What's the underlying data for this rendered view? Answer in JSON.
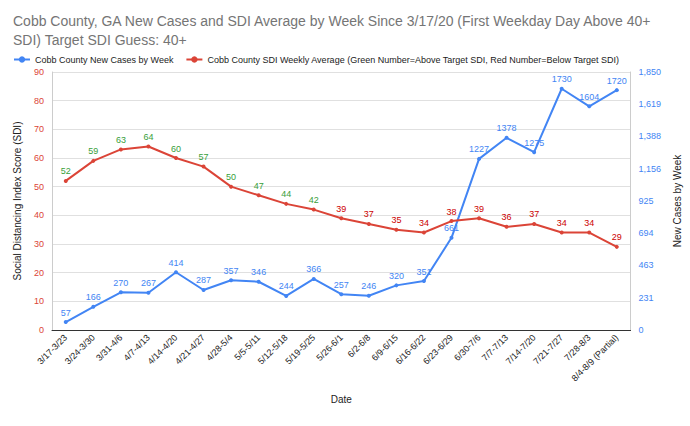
{
  "chart_data": {
    "type": "line",
    "title": "Cobb County, GA New Cases and SDI Average by Week Since 3/17/20 (First Weekday Day Above 40+ SDI) Target SDI Guess: 40+",
    "x_label": "Date",
    "y_label": "Social Distancing Index Score (SDI)",
    "y2_label": "New Cases by Week",
    "categories": [
      "3/17-3/23",
      "3/24-3/30",
      "3/31-4/6",
      "4/7-4/13",
      "4/14-4/20",
      "4/21-4/27",
      "4/28-5/4",
      "5/5-5/11",
      "5/12-5/18",
      "5/19-5/25",
      "5/26-6/1",
      "6/2-6/8",
      "6/9-6/15",
      "6/16-6/22",
      "6/23-6/29",
      "6/30-7/6",
      "7/7-7/13",
      "7/14-7/20",
      "7/21-7/27",
      "7/28-8/3",
      "8/4-8/9 (Partial)"
    ],
    "ylim": [
      0,
      90
    ],
    "yticks": [
      0,
      10,
      20,
      30,
      40,
      50,
      60,
      70,
      80,
      90
    ],
    "y2lim": [
      0,
      1850
    ],
    "y2ticks": [
      0,
      231,
      463,
      694,
      925,
      1156,
      1388,
      1619,
      1850
    ],
    "series": [
      {
        "name": "Cobb County New Cases by Week",
        "color": "#4285f4",
        "axis": "y2",
        "values": [
          57,
          166,
          270,
          267,
          414,
          287,
          357,
          346,
          244,
          366,
          257,
          246,
          320,
          351,
          661,
          1227,
          1378,
          1275,
          1730,
          1604,
          1720
        ]
      },
      {
        "name": "Cobb County SDI Weekly Average (Green Number=Above Target SDI, Red Number=Below Target SDI)",
        "color": "#db4437",
        "values": [
          52,
          59,
          63,
          64,
          60,
          57,
          50,
          47,
          44,
          42,
          39,
          37,
          35,
          34,
          38,
          39,
          36,
          37,
          34,
          34,
          29
        ],
        "colors": [
          "#38a03a",
          "#38a03a",
          "#38a03a",
          "#38a03a",
          "#38a03a",
          "#38a03a",
          "#38a03a",
          "#38a03a",
          "#38a03a",
          "#38a03a",
          "#cc0000",
          "#cc0000",
          "#cc0000",
          "#cc0000",
          "#cc0000",
          "#cc0000",
          "#cc0000",
          "#cc0000",
          "#cc0000",
          "#cc0000",
          "#cc0000"
        ]
      }
    ],
    "data_labels": true,
    "legend": "top",
    "grid": true,
    "marker": "circle"
  }
}
